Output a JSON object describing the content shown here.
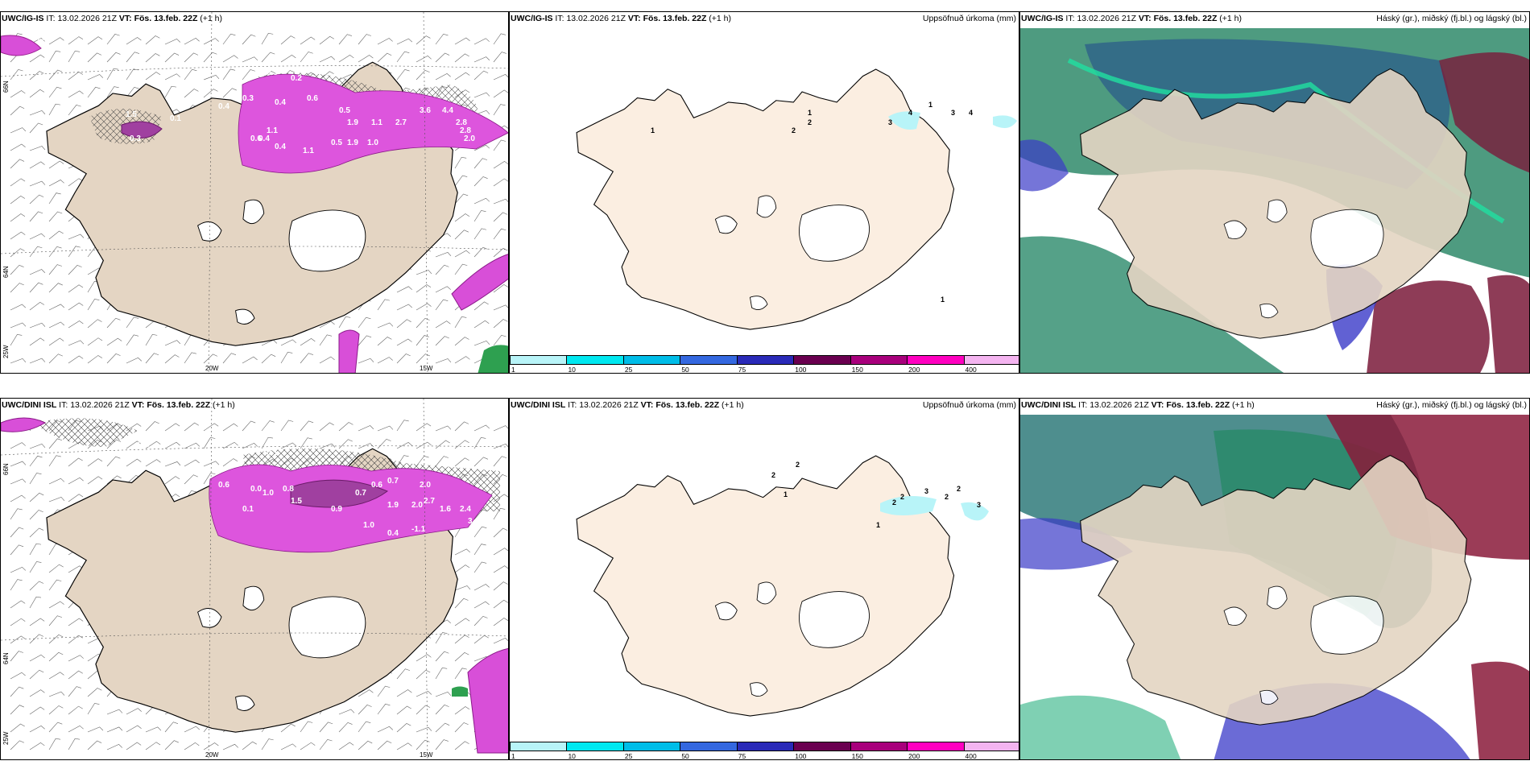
{
  "panels": {
    "p1": {
      "model": "UWC/IG-IS",
      "it_label": "IT:",
      "it_value": "13.02.2026 21Z",
      "vt_label": "VT:",
      "vt_value": "Fös. 13.feb. 22Z",
      "lead": "(+1 h)"
    },
    "p2": {
      "model": "UWC/IG-IS",
      "it_label": "IT:",
      "it_value": "13.02.2026 21Z",
      "vt_label": "VT:",
      "vt_value": "Fös. 13.feb. 22Z",
      "lead": "(+1 h)",
      "title_right": "Uppsöfnuð úrkoma (mm)"
    },
    "p3": {
      "model": "UWC/IG-IS",
      "it_label": "IT:",
      "it_value": "13.02.2026 21Z",
      "vt_label": "VT:",
      "vt_value": "Fös. 13.feb. 22Z",
      "lead": "(+1 h)",
      "title_right": "Háský (gr.), miðský (fj.bl.) og lágský (bl.)"
    },
    "p4": {
      "model": "UWC/DINI ISL",
      "it_label": "IT:",
      "it_value": "13.02.2026 21Z",
      "vt_label": "VT:",
      "vt_value": "Fös. 13.feb. 22Z",
      "lead": "(+1 h)"
    },
    "p5": {
      "model": "UWC/DINI ISL",
      "it_label": "IT:",
      "it_value": "13.02.2026 21Z",
      "vt_label": "VT:",
      "vt_value": "Fös. 13.feb. 22Z",
      "lead": "(+1 h)",
      "title_right": "Uppsöfnuð úrkoma (mm)"
    },
    "p6": {
      "model": "UWC/DINI ISL",
      "it_label": "IT:",
      "it_value": "13.02.2026 21Z",
      "vt_label": "VT:",
      "vt_value": "Fös. 13.feb. 22Z",
      "lead": "(+1 h)",
      "title_right": "Háský (gr.), miðský (fj.bl.) og lágský (bl.)"
    }
  },
  "legend": {
    "levels": [
      "1",
      "10",
      "25",
      "50",
      "75",
      "100",
      "150",
      "200",
      "400"
    ],
    "colors": [
      "#b8f4f8",
      "#00e8f0",
      "#00bde8",
      "#3468e0",
      "#2a2ab8",
      "#6a0050",
      "#a8007c",
      "#ff00c0",
      "#f4b4f0"
    ]
  },
  "graticule": {
    "lat_66": "66N",
    "lat_64": "64N",
    "lon_25": "25W",
    "lon_20": "20W",
    "lon_15": "15W"
  },
  "wind_values_top": [
    "0.3",
    "0.5",
    "0.5",
    "0.2",
    "0.3",
    "1.5",
    "0.1",
    "0.4",
    "0.4",
    "0.6",
    "0.5",
    "1.9",
    "1.1",
    "2.7",
    "3.6",
    "4.4",
    "2.8",
    "2.8",
    "2.0",
    "0.5",
    "0.4",
    "1.9",
    "1.0",
    "1.1",
    "0.6",
    "0.4",
    "1.1",
    "0.3"
  ],
  "wind_values_bottom": [
    "0.1",
    "1.1",
    "0.1",
    "0.6",
    "0.0",
    "1.0",
    "0.8",
    "0.7",
    "0.6",
    "0.7",
    "2.0",
    "1.9",
    "2.0",
    "2.7",
    "1.6",
    "2.4",
    "3.4",
    "0.9",
    "1.0",
    "0.4",
    "-1.1",
    "1.5",
    "0.1"
  ],
  "precip_top": [
    "1",
    "2",
    "1",
    "2",
    "3",
    "4",
    "1",
    "3",
    "4",
    "1"
  ],
  "precip_bottom": [
    "2",
    "2",
    "1",
    "2",
    "3",
    "2",
    "2",
    "2",
    "3",
    "1"
  ]
}
